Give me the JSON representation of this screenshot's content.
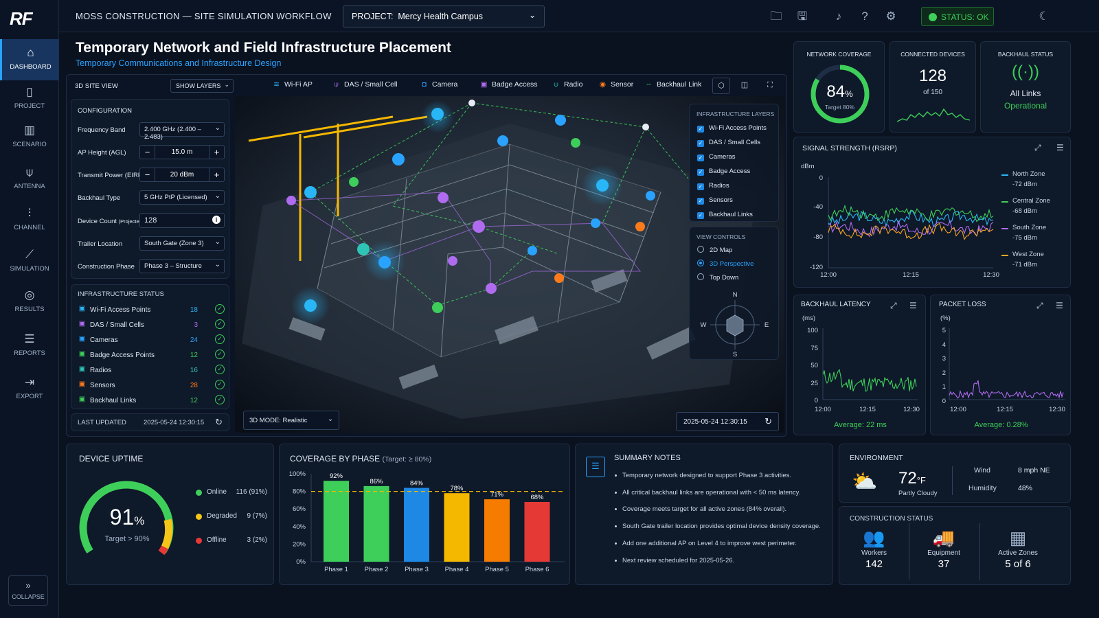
{
  "app": {
    "logo": "RF",
    "title": "MOSS CONSTRUCTION — SITE SIMULATION WORKFLOW",
    "project_label": "PROJECT:",
    "project_value": "Mercy Health Campus",
    "status": "STATUS: OK"
  },
  "nav": [
    {
      "label": "DASHBOARD",
      "icon": "home-icon"
    },
    {
      "label": "PROJECT",
      "icon": "document-icon"
    },
    {
      "label": "SCENARIO",
      "icon": "buildings-icon"
    },
    {
      "label": "ANTENNA",
      "icon": "antenna-icon"
    },
    {
      "label": "CHANNEL",
      "icon": "waveform-icon"
    },
    {
      "label": "SIMULATION",
      "icon": "chart-line-icon"
    },
    {
      "label": "RESULTS",
      "icon": "results-icon"
    },
    {
      "label": "REPORTS",
      "icon": "report-icon"
    },
    {
      "label": "EXPORT",
      "icon": "export-icon"
    }
  ],
  "collapse_label": "COLLAPSE",
  "page": {
    "title": "Temporary Network and Field Infrastructure Placement",
    "subtitle": "Temporary Communications and Infrastructure Design"
  },
  "view": {
    "label": "3D SITE VIEW",
    "show_layers": "SHOW LAYERS",
    "legend": [
      "Wi-Fi AP",
      "DAS / Small Cell",
      "Camera",
      "Badge Access",
      "Radio",
      "Sensor",
      "Backhaul Link"
    ],
    "mode": "3D MODE: Realistic",
    "timestamp": "2025-05-24  12:30:15"
  },
  "config": {
    "title": "CONFIGURATION",
    "freq_label": "Frequency Band",
    "freq_value": "2.400 GHz (2.400 – 2.483)",
    "ap_label": "AP Height (AGL)",
    "ap_value": "15.0 m",
    "tx_label": "Transmit Power (EIRP)",
    "tx_value": "20 dBm",
    "backhaul_label": "Backhaul Type",
    "backhaul_value": "5 GHz PtP (Licensed)",
    "device_label": "Device Count",
    "device_label_sub": "(Projected)",
    "device_value": "128",
    "trailer_label": "Trailer Location",
    "trailer_value": "South Gate (Zone 3)",
    "phase_label": "Construction Phase",
    "phase_value": "Phase 3 – Structure"
  },
  "infra": {
    "title": "INFRASTRUCTURE STATUS",
    "rows": [
      {
        "name": "Wi-Fi Access Points",
        "count": "18",
        "color": "#29b6f6"
      },
      {
        "name": "DAS / Small Cells",
        "count": "3",
        "color": "#b06cf0"
      },
      {
        "name": "Cameras",
        "count": "24",
        "color": "#29a3ff"
      },
      {
        "name": "Badge Access Points",
        "count": "12",
        "color": "#3ecf5a"
      },
      {
        "name": "Radios",
        "count": "16",
        "color": "#2ec4b6"
      },
      {
        "name": "Sensors",
        "count": "28",
        "color": "#ff7a1a"
      },
      {
        "name": "Backhaul Links",
        "count": "12",
        "color": "#3ecf5a"
      }
    ],
    "last_updated_label": "LAST UPDATED",
    "last_updated_value": "2025-05-24  12:30:15"
  },
  "layers": {
    "title": "INFRASTRUCTURE LAYERS",
    "items": [
      "Wi-Fi Access Points",
      "DAS / Small Cells",
      "Cameras",
      "Badge Access",
      "Radios",
      "Sensors",
      "Backhaul Links"
    ],
    "view_title": "VIEW CONTROLS",
    "views": [
      "2D Map",
      "3D Perspective",
      "Top Down"
    ],
    "compass": {
      "n": "N",
      "s": "S",
      "e": "E",
      "w": "W"
    }
  },
  "kpi": {
    "coverage_title": "NETWORK COVERAGE",
    "coverage_value": "84",
    "coverage_unit": "%",
    "coverage_target": "Target 80%",
    "coverage_fraction": 0.84,
    "devices_title": "CONNECTED DEVICES",
    "devices_value": "128",
    "devices_of": "of 150",
    "backhaul_title": "BACKHAUL STATUS",
    "backhaul_line1": "All Links",
    "backhaul_line2": "Operational"
  },
  "signal": {
    "title": "SIGNAL STRENGTH (RSRP)",
    "unit": "dBm",
    "y_ticks": [
      "0",
      "-40",
      "-80",
      "-120"
    ],
    "x_ticks": [
      "12:00",
      "12:15",
      "12:30"
    ],
    "zones": [
      {
        "name": "North Zone",
        "value": "-72 dBm",
        "color": "#29b6f6"
      },
      {
        "name": "Central Zone",
        "value": "-68 dBm",
        "color": "#3ecf5a"
      },
      {
        "name": "South Zone",
        "value": "-75 dBm",
        "color": "#b06cf0"
      },
      {
        "name": "West Zone",
        "value": "-71 dBm",
        "color": "#f5a623"
      }
    ]
  },
  "latency": {
    "title": "BACKHAUL LATENCY",
    "unit": "(ms)",
    "y_ticks": [
      "100",
      "75",
      "50",
      "25",
      "0"
    ],
    "x_ticks": [
      "12:00",
      "12:15",
      "12:30"
    ],
    "average": "Average: 22 ms"
  },
  "loss": {
    "title": "PACKET LOSS",
    "unit": "(%)",
    "y_ticks": [
      "5",
      "4",
      "3",
      "2",
      "1",
      "0"
    ],
    "x_ticks": [
      "12:00",
      "12:15",
      "12:30"
    ],
    "average": "Average: 0.28%"
  },
  "uptime": {
    "title": "DEVICE UPTIME",
    "value": "91",
    "unit": "%",
    "target": "Target > 90%",
    "legend": [
      {
        "label": "Online",
        "value": "116 (91%)",
        "color": "#3ecf5a"
      },
      {
        "label": "Degraded",
        "value": "9 (7%)",
        "color": "#f5c518"
      },
      {
        "label": "Offline",
        "value": "3 (2%)",
        "color": "#e53935"
      }
    ]
  },
  "chart_data": {
    "type": "bar",
    "title": "COVERAGE BY PHASE",
    "subtitle": "(Target: ≥ 80%)",
    "categories": [
      "Phase 1",
      "Phase 2",
      "Phase 3",
      "Phase 4",
      "Phase 5",
      "Phase 6"
    ],
    "values": [
      92,
      86,
      84,
      78,
      71,
      68
    ],
    "value_labels": [
      "92%",
      "86%",
      "84%",
      "78%",
      "71%",
      "68%"
    ],
    "colors": [
      "#3ecf5a",
      "#3ecf5a",
      "#1e88e5",
      "#f5b800",
      "#f57c00",
      "#e53935"
    ],
    "y_ticks": [
      "100%",
      "80%",
      "60%",
      "40%",
      "20%",
      "0%"
    ],
    "ylim": [
      0,
      100
    ],
    "target": 80
  },
  "notes": {
    "title": "SUMMARY NOTES",
    "items": [
      "Temporary network designed to support Phase 3 activities.",
      "All critical backhaul links are operational with < 50 ms latency.",
      "Coverage meets target for all active zones (84% overall).",
      "South Gate trailer location provides optimal device density coverage.",
      "Add one additional AP on Level 4 to improve west perimeter.",
      "Next review scheduled for 2025-05-26."
    ]
  },
  "environment": {
    "title": "ENVIRONMENT",
    "temp": "72",
    "temp_unit": "°F",
    "condition": "Partly Cloudy",
    "wind_label": "Wind",
    "wind_value": "8 mph NE",
    "humidity_label": "Humidity",
    "humidity_value": "48%"
  },
  "construction": {
    "title": "CONSTRUCTION STATUS",
    "items": [
      {
        "label": "Workers",
        "value": "142"
      },
      {
        "label": "Equipment",
        "value": "37"
      },
      {
        "label": "Active Zones",
        "value": "5 of 6"
      }
    ]
  }
}
